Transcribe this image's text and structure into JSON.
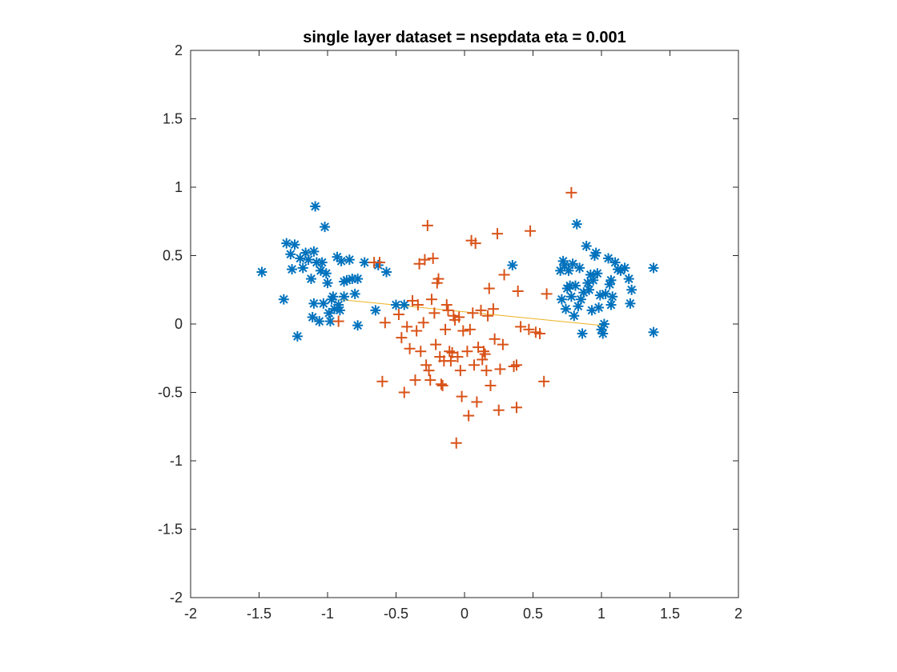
{
  "chart_data": {
    "type": "scatter",
    "title": "single layer   dataset =  nsepdata   eta = 0.001",
    "xlabel": "",
    "ylabel": "",
    "xlim": [
      -2,
      2
    ],
    "ylim": [
      -2,
      2
    ],
    "xticks": [
      -2,
      -1.5,
      -1,
      -0.5,
      0,
      0.5,
      1,
      1.5,
      2
    ],
    "yticks": [
      -2,
      -1.5,
      -1,
      -0.5,
      0,
      0.5,
      1,
      1.5,
      2
    ],
    "xtick_labels": [
      "-2",
      "-1.5",
      "-1",
      "-0.5",
      "0",
      "0.5",
      "1",
      "1.5",
      "2"
    ],
    "ytick_labels": [
      "-2",
      "-1.5",
      "-1",
      "-0.5",
      "0",
      "0.5",
      "1",
      "1.5",
      "2"
    ],
    "grid": false,
    "series": [
      {
        "marker": "asterisk",
        "color": "#0072BD",
        "points": [
          [
            -1.48,
            0.38
          ],
          [
            -1.32,
            0.18
          ],
          [
            -1.3,
            0.59
          ],
          [
            -1.27,
            0.51
          ],
          [
            -1.26,
            0.4
          ],
          [
            -1.24,
            0.58
          ],
          [
            -1.22,
            -0.09
          ],
          [
            -1.2,
            0.48
          ],
          [
            -1.18,
            0.41
          ],
          [
            -1.16,
            0.52
          ],
          [
            -1.14,
            0.47
          ],
          [
            -1.12,
            0.33
          ],
          [
            -1.1,
            0.53
          ],
          [
            -1.09,
            0.86
          ],
          [
            -1.1,
            0.15
          ],
          [
            -1.11,
            0.05
          ],
          [
            -1.08,
            0.45
          ],
          [
            -1.06,
            0.02
          ],
          [
            -1.05,
            0.39
          ],
          [
            -1.04,
            0.45
          ],
          [
            -1.03,
            0.15
          ],
          [
            -1.02,
            0.71
          ],
          [
            -1.01,
            0.37
          ],
          [
            -1.0,
            0.3
          ],
          [
            -0.99,
            0.08
          ],
          [
            -0.98,
            0.02
          ],
          [
            -0.97,
            0.18
          ],
          [
            -0.96,
            0.2
          ],
          [
            -0.95,
            0.11
          ],
          [
            -0.93,
            0.49
          ],
          [
            -0.92,
            0.14
          ],
          [
            -0.91,
            0.1
          ],
          [
            -0.9,
            0.46
          ],
          [
            -0.88,
            0.2
          ],
          [
            -0.88,
            0.31
          ],
          [
            -0.86,
            0.32
          ],
          [
            -0.84,
            0.47
          ],
          [
            -0.82,
            0.33
          ],
          [
            -0.8,
            0.22
          ],
          [
            -0.78,
            0.33
          ],
          [
            -0.78,
            -0.01
          ],
          [
            -0.73,
            0.45
          ],
          [
            -0.65,
            0.1
          ],
          [
            -0.63,
            0.43
          ],
          [
            -0.57,
            0.38
          ],
          [
            -0.5,
            0.14
          ],
          [
            -0.44,
            0.14
          ],
          [
            0.35,
            0.43
          ],
          [
            0.7,
            0.39
          ],
          [
            0.71,
            0.18
          ],
          [
            0.72,
            0.46
          ],
          [
            0.73,
            0.43
          ],
          [
            0.74,
            0.11
          ],
          [
            0.75,
            0.26
          ],
          [
            0.76,
            0.39
          ],
          [
            0.77,
            0.28
          ],
          [
            0.78,
            0.2
          ],
          [
            0.79,
            0.44
          ],
          [
            0.8,
            0.06
          ],
          [
            0.81,
            0.28
          ],
          [
            0.82,
            0.73
          ],
          [
            0.83,
            0.13
          ],
          [
            0.84,
            0.41
          ],
          [
            0.85,
            0.18
          ],
          [
            0.86,
            -0.07
          ],
          [
            0.87,
            0.23
          ],
          [
            0.89,
            0.57
          ],
          [
            0.9,
            0.3
          ],
          [
            0.91,
            0.25
          ],
          [
            0.92,
            0.36
          ],
          [
            0.93,
            0.1
          ],
          [
            0.94,
            0.32
          ],
          [
            0.95,
            0.5
          ],
          [
            0.96,
            0.52
          ],
          [
            0.97,
            0.37
          ],
          [
            0.98,
            0.12
          ],
          [
            0.99,
            0.21
          ],
          [
            1.0,
            -0.04
          ],
          [
            1.01,
            -0.07
          ],
          [
            1.02,
            0.0
          ],
          [
            1.03,
            0.22
          ],
          [
            1.05,
            0.48
          ],
          [
            1.06,
            0.29
          ],
          [
            1.07,
            0.14
          ],
          [
            1.07,
            0.32
          ],
          [
            1.08,
            0.2
          ],
          [
            1.1,
            0.45
          ],
          [
            1.12,
            0.4
          ],
          [
            1.14,
            0.39
          ],
          [
            1.17,
            0.41
          ],
          [
            1.2,
            0.33
          ],
          [
            1.21,
            0.15
          ],
          [
            1.22,
            0.25
          ],
          [
            1.38,
            0.41
          ],
          [
            1.38,
            -0.06
          ]
        ]
      },
      {
        "marker": "plus",
        "color": "#D95319",
        "points": [
          [
            -0.92,
            0.02
          ],
          [
            -0.66,
            0.45
          ],
          [
            -0.6,
            -0.42
          ],
          [
            -0.58,
            0.01
          ],
          [
            -0.48,
            0.07
          ],
          [
            -0.46,
            -0.1
          ],
          [
            -0.44,
            -0.5
          ],
          [
            -0.42,
            -0.02
          ],
          [
            -0.4,
            -0.18
          ],
          [
            -0.38,
            0.17
          ],
          [
            -0.36,
            -0.41
          ],
          [
            -0.35,
            -0.05
          ],
          [
            -0.34,
            0.14
          ],
          [
            -0.33,
            0.44
          ],
          [
            -0.32,
            -0.2
          ],
          [
            -0.3,
            0.01
          ],
          [
            -0.29,
            0.47
          ],
          [
            -0.28,
            -0.3
          ],
          [
            -0.27,
            0.72
          ],
          [
            -0.26,
            -0.34
          ],
          [
            -0.25,
            -0.41
          ],
          [
            -0.24,
            0.18
          ],
          [
            -0.23,
            0.48
          ],
          [
            -0.22,
            0.08
          ],
          [
            -0.21,
            -0.15
          ],
          [
            -0.2,
            0.3
          ],
          [
            -0.19,
            0.33
          ],
          [
            -0.18,
            -0.24
          ],
          [
            -0.17,
            -0.44
          ],
          [
            -0.16,
            -0.45
          ],
          [
            -0.15,
            -0.27
          ],
          [
            -0.14,
            -0.04
          ],
          [
            -0.13,
            0.14
          ],
          [
            -0.12,
            0.1
          ],
          [
            -0.11,
            -0.2
          ],
          [
            -0.1,
            -0.27
          ],
          [
            -0.09,
            -0.21
          ],
          [
            -0.08,
            0.06
          ],
          [
            -0.07,
            0.03
          ],
          [
            -0.06,
            -0.87
          ],
          [
            -0.05,
            -0.24
          ],
          [
            -0.04,
            0.05
          ],
          [
            -0.03,
            -0.34
          ],
          [
            -0.02,
            -0.53
          ],
          [
            -0.01,
            -0.05
          ],
          [
            0.02,
            -0.2
          ],
          [
            0.03,
            -0.67
          ],
          [
            0.04,
            -0.04
          ],
          [
            0.05,
            0.61
          ],
          [
            0.06,
            0.08
          ],
          [
            0.07,
            -0.3
          ],
          [
            0.08,
            0.59
          ],
          [
            0.09,
            -0.57
          ],
          [
            0.1,
            -0.17
          ],
          [
            0.12,
            0.1
          ],
          [
            0.13,
            -0.26
          ],
          [
            0.14,
            -0.2
          ],
          [
            0.15,
            -0.22
          ],
          [
            0.16,
            -0.34
          ],
          [
            0.17,
            0.06
          ],
          [
            0.18,
            0.26
          ],
          [
            0.19,
            -0.45
          ],
          [
            0.21,
            0.11
          ],
          [
            0.22,
            -0.11
          ],
          [
            0.24,
            0.66
          ],
          [
            0.25,
            -0.63
          ],
          [
            0.26,
            -0.33
          ],
          [
            0.28,
            -0.15
          ],
          [
            0.29,
            0.36
          ],
          [
            0.36,
            -0.31
          ],
          [
            0.38,
            -0.3
          ],
          [
            0.38,
            -0.61
          ],
          [
            0.39,
            0.24
          ],
          [
            0.41,
            -0.02
          ],
          [
            0.47,
            -0.04
          ],
          [
            0.48,
            0.68
          ],
          [
            0.52,
            -0.06
          ],
          [
            0.55,
            -0.07
          ],
          [
            0.58,
            -0.42
          ],
          [
            0.6,
            0.22
          ],
          [
            0.78,
            0.96
          ],
          [
            -0.62,
            0.45
          ]
        ]
      }
    ],
    "boundary_line": {
      "color": "#EDB120",
      "x": [
        -0.92,
        1.0
      ],
      "y": [
        0.18,
        -0.01
      ]
    }
  }
}
